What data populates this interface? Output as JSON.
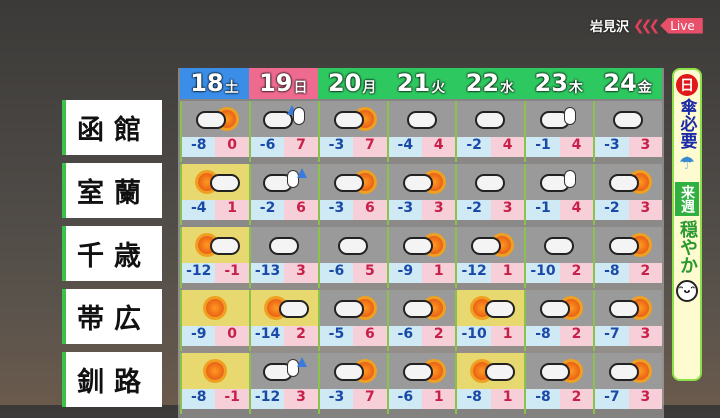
{
  "header": {
    "location": "岩見沢",
    "live_label": "Live",
    "chevrons": "❮❮❮"
  },
  "days": [
    {
      "date": "18",
      "weekday": "土",
      "color": "#3a8ee8"
    },
    {
      "date": "19",
      "weekday": "日",
      "color": "#ee6a8e"
    },
    {
      "date": "20",
      "weekday": "月",
      "color": "#2ec860"
    },
    {
      "date": "21",
      "weekday": "火",
      "color": "#2ec860"
    },
    {
      "date": "22",
      "weekday": "水",
      "color": "#2ec860"
    },
    {
      "date": "23",
      "weekday": "木",
      "color": "#2ec860"
    },
    {
      "date": "24",
      "weekday": "金",
      "color": "#2ec860"
    }
  ],
  "cities": [
    {
      "name": "函館",
      "icons": [
        "cloudy-sunny",
        "cloudy-rain-snow",
        "cloudy-sunny",
        "cloudy",
        "cloudy",
        "cloudy-snow",
        "cloudy"
      ],
      "lows": [
        "-8",
        "-6",
        "-3",
        "-4",
        "-2",
        "-1",
        "-3"
      ],
      "highs": [
        "0",
        "7",
        "7",
        "4",
        "4",
        "4",
        "3"
      ]
    },
    {
      "name": "室蘭",
      "icons": [
        "sunny-cloudy",
        "cloudy-snow-rain",
        "cloudy-sunny",
        "cloudy-sunny",
        "cloudy",
        "cloudy-snow",
        "cloudy-sunny"
      ],
      "lows": [
        "-4",
        "-2",
        "-3",
        "-3",
        "-2",
        "-1",
        "-2"
      ],
      "highs": [
        "1",
        "6",
        "6",
        "3",
        "3",
        "4",
        "3"
      ]
    },
    {
      "name": "千歳",
      "icons": [
        "sunny-cloudy",
        "cloudy",
        "cloudy",
        "cloudy-sunny",
        "cloudy-sunny",
        "cloudy",
        "cloudy-sunny"
      ],
      "lows": [
        "-12",
        "-13",
        "-6",
        "-9",
        "-12",
        "-10",
        "-8"
      ],
      "highs": [
        "-1",
        "3",
        "5",
        "1",
        "1",
        "2",
        "2"
      ]
    },
    {
      "name": "帯広",
      "icons": [
        "sunny",
        "sunny-cloudy",
        "cloudy-sunny",
        "cloudy-sunny",
        "sunny-cloudy",
        "cloudy-sunny",
        "cloudy-sunny"
      ],
      "lows": [
        "-9",
        "-14",
        "-5",
        "-6",
        "-10",
        "-8",
        "-7"
      ],
      "highs": [
        "0",
        "2",
        "6",
        "2",
        "1",
        "2",
        "3"
      ]
    },
    {
      "name": "釧路",
      "icons": [
        "sunny",
        "cloudy-snow-rain",
        "cloudy-sunny",
        "cloudy-sunny",
        "sunny-cloudy",
        "cloudy-sunny",
        "cloudy-sunny"
      ],
      "lows": [
        "-8",
        "-12",
        "-3",
        "-6",
        "-8",
        "-8",
        "-7"
      ],
      "highs": [
        "-1",
        "3",
        "7",
        "1",
        "1",
        "2",
        "3"
      ]
    }
  ],
  "side": {
    "badge": "日",
    "umbrella_text": "傘必要",
    "week_label": "来週",
    "calm_text": "穏やか"
  }
}
